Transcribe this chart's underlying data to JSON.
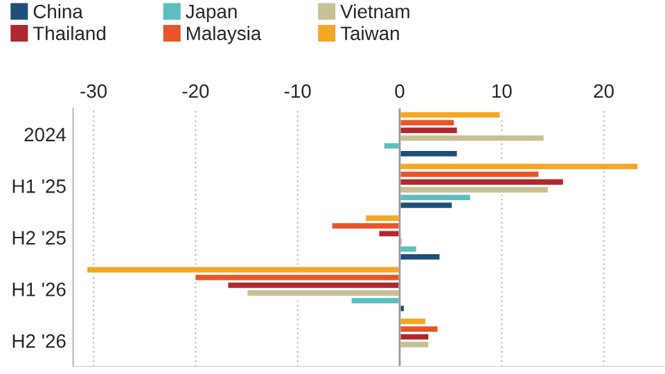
{
  "chart_data": {
    "type": "bar",
    "orientation": "horizontal",
    "categories": [
      "2024",
      "H1 '25",
      "H2 '25",
      "H1 '26",
      "H2 '26"
    ],
    "series": [
      {
        "name": "China",
        "color": "#1f4e79",
        "values": [
          5.7,
          5.2,
          4.0,
          0.5,
          null
        ]
      },
      {
        "name": "Japan",
        "color": "#5bbfbf",
        "values": [
          -1.6,
          7.0,
          1.7,
          -4.8,
          null
        ]
      },
      {
        "name": "Vietnam",
        "color": "#c8bf95",
        "values": [
          14.2,
          14.6,
          0.3,
          -15.0,
          2.9
        ]
      },
      {
        "name": "Thailand",
        "color": "#b0282e",
        "values": [
          5.7,
          16.1,
          -2.1,
          -16.9,
          2.9
        ]
      },
      {
        "name": "Malaysia",
        "color": "#e8552a",
        "values": [
          5.4,
          13.7,
          -6.7,
          -20.1,
          3.8
        ]
      },
      {
        "name": "Taiwan",
        "color": "#f5a623",
        "values": [
          9.9,
          23.4,
          -3.4,
          -30.7,
          2.6
        ]
      }
    ],
    "xlim": [
      -32,
      26
    ],
    "xticks": [
      -30,
      -20,
      -10,
      0,
      10,
      20
    ],
    "grid": "x",
    "legend": "top left",
    "ref_lines": [
      {
        "axis": "x",
        "value": 0,
        "color": "#999999"
      }
    ]
  }
}
